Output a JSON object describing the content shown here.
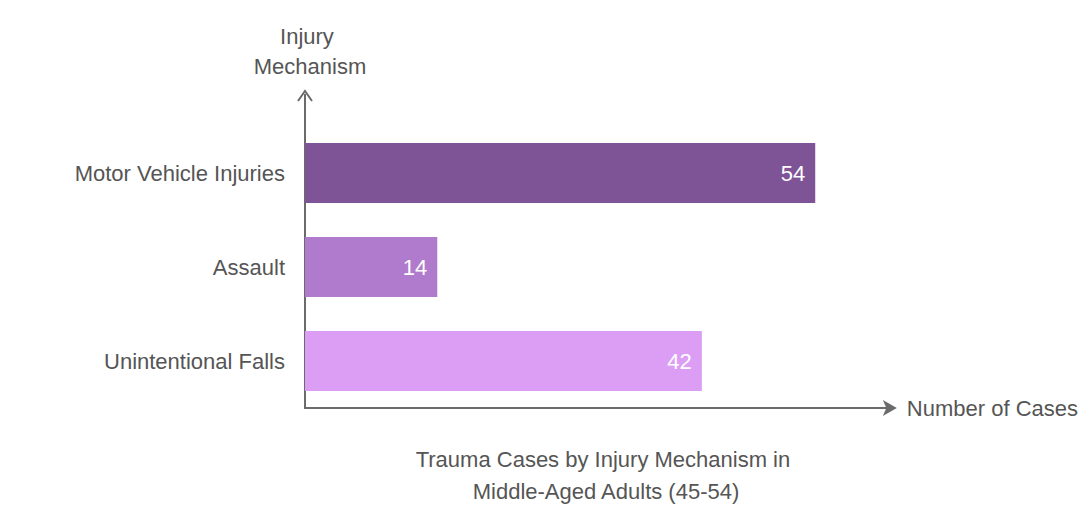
{
  "chart_data": {
    "type": "bar",
    "orientation": "horizontal",
    "title": "Trauma Cases by Injury Mechanism in Middle-Aged Adults (45-54)",
    "x_label": "Number of Cases",
    "y_label": "Injury Mechanism",
    "categories": [
      "Motor Vehicle Injuries",
      "Assault",
      "Unintentional Falls"
    ],
    "values": [
      54,
      14,
      42
    ],
    "colors": [
      "#7e5497",
      "#b07bcc",
      "#dc9ef5"
    ],
    "xlim": [
      0,
      62
    ],
    "grid": false,
    "data_labels": true,
    "tick_labels": "y"
  }
}
